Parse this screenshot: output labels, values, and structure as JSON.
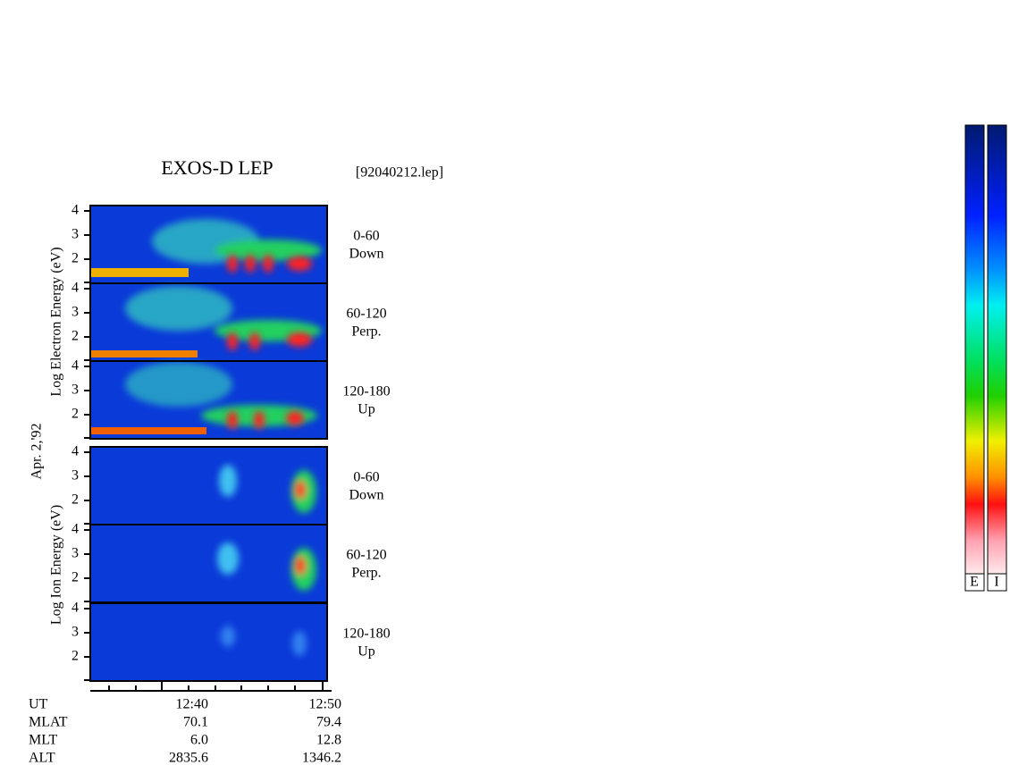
{
  "header": {
    "title": "EXOS-D LEP",
    "file": "[92040212.lep]"
  },
  "axis_labels": {
    "electron": "Log Electron Energy (eV)",
    "ion": "Log Ion Energy (eV)",
    "date": "Apr. 2,'92"
  },
  "energy_ticks": [
    "4",
    "3",
    "2"
  ],
  "panels": [
    {
      "pitch": "0-60",
      "direction": "Down"
    },
    {
      "pitch": "60-120",
      "direction": "Perp."
    },
    {
      "pitch": "120-180",
      "direction": "Up"
    },
    {
      "pitch": "0-60",
      "direction": "Down"
    },
    {
      "pitch": "60-120",
      "direction": "Perp."
    },
    {
      "pitch": "120-180",
      "direction": "Up"
    }
  ],
  "orbit": {
    "rows": [
      [
        "UT",
        "12:40",
        "12:50"
      ],
      [
        "MLAT",
        "70.1",
        "79.4"
      ],
      [
        "MLT",
        "6.0",
        "12.8"
      ],
      [
        "ALT",
        "2835.6",
        "1346.2"
      ]
    ]
  },
  "colorbar_labels": [
    "E",
    "I"
  ]
}
